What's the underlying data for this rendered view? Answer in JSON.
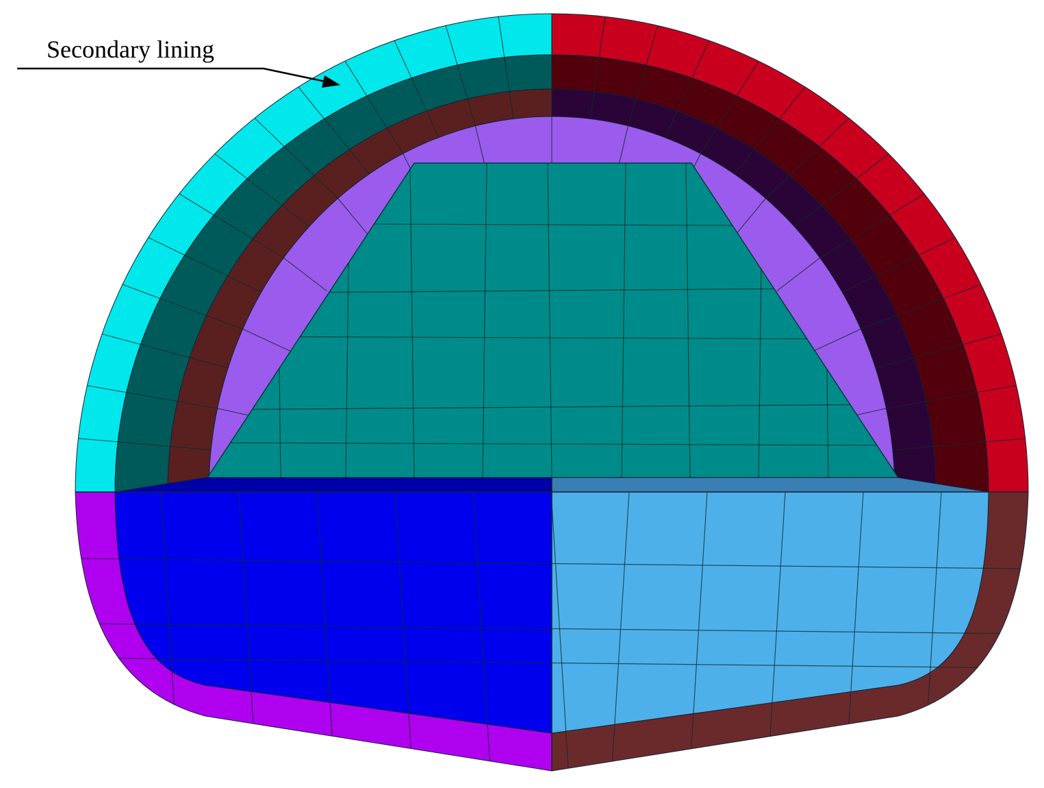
{
  "annotation": {
    "label": "Secondary lining"
  }
}
